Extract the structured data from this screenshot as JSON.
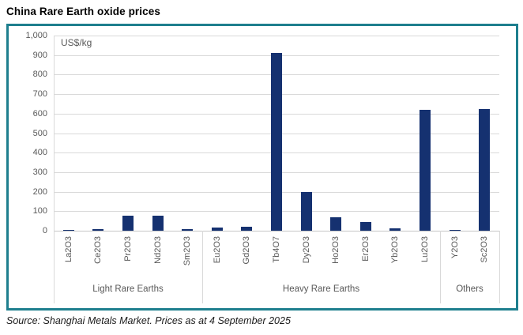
{
  "page": {
    "title": "China Rare Earth oxide prices",
    "source_note": "Source: Shanghai Metals Market. Prices as at 4 September 2025"
  },
  "chart_data": {
    "type": "bar",
    "title": "China Rare Earth oxide prices",
    "unit_label": "US$/kg",
    "ylabel": "US$/kg",
    "ylim": [
      0,
      1000
    ],
    "ytick_step": 100,
    "grid": true,
    "legend": "none",
    "bar_color": "#153170",
    "frame_color": "#1e7f8e",
    "gridline_color": "#d9d9d9",
    "axis_text_color": "#595959",
    "groups": [
      {
        "label": "Light Rare Earths",
        "categories": [
          "La2O3",
          "Ce2O3",
          "Pr2O3",
          "Nd2O3",
          "Sm2O3"
        ],
        "values": [
          5,
          8,
          78,
          78,
          10
        ]
      },
      {
        "label": "Heavy Rare Earths",
        "categories": [
          "Eu2O3",
          "Gd2O3",
          "Tb4O7",
          "Dy2O3",
          "Ho2O3",
          "Er2O3",
          "Yb2O3",
          "Lu2O3"
        ],
        "values": [
          15,
          22,
          910,
          200,
          70,
          45,
          13,
          620
        ]
      },
      {
        "label": "Others",
        "categories": [
          "Y2O3",
          "Sc2O3"
        ],
        "values": [
          5,
          625
        ]
      }
    ],
    "source_note": "Source: Shanghai Metals Market. Prices as at 4 September 2025"
  }
}
